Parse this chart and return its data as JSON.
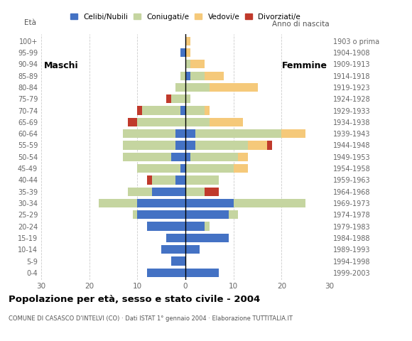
{
  "age_groups": [
    "0-4",
    "5-9",
    "10-14",
    "15-19",
    "20-24",
    "25-29",
    "30-34",
    "35-39",
    "40-44",
    "45-49",
    "50-54",
    "55-59",
    "60-64",
    "65-69",
    "70-74",
    "75-79",
    "80-84",
    "85-89",
    "90-94",
    "95-99",
    "100+"
  ],
  "birth_years": [
    "1999-2003",
    "1994-1998",
    "1989-1993",
    "1984-1988",
    "1979-1983",
    "1974-1978",
    "1969-1973",
    "1964-1968",
    "1959-1963",
    "1954-1958",
    "1949-1953",
    "1944-1948",
    "1939-1943",
    "1934-1938",
    "1929-1933",
    "1924-1928",
    "1919-1923",
    "1914-1918",
    "1909-1913",
    "1904-1908",
    "1903 o prima"
  ],
  "colors": {
    "celibi": "#4472C4",
    "coniugati": "#c5d5a0",
    "vedovi": "#f5c97a",
    "divorziati": "#c0392b"
  },
  "maschi": {
    "celibi": [
      8,
      3,
      5,
      4,
      8,
      10,
      10,
      7,
      2,
      1,
      3,
      2,
      2,
      0,
      1,
      0,
      0,
      0,
      0,
      1,
      0
    ],
    "coniugati": [
      0,
      0,
      0,
      0,
      0,
      1,
      8,
      5,
      5,
      9,
      10,
      11,
      11,
      10,
      8,
      3,
      2,
      1,
      0,
      0,
      0
    ],
    "vedovi": [
      0,
      0,
      0,
      0,
      0,
      0,
      0,
      0,
      0,
      0,
      0,
      0,
      0,
      0,
      0,
      0,
      0,
      0,
      0,
      0,
      0
    ],
    "divorziati": [
      0,
      0,
      0,
      0,
      0,
      0,
      0,
      0,
      1,
      0,
      0,
      0,
      0,
      2,
      1,
      1,
      0,
      0,
      0,
      0,
      0
    ]
  },
  "femmine": {
    "celibi": [
      7,
      0,
      3,
      9,
      4,
      9,
      10,
      0,
      0,
      0,
      1,
      2,
      2,
      0,
      0,
      0,
      0,
      1,
      0,
      0,
      0
    ],
    "coniugati": [
      0,
      0,
      0,
      0,
      1,
      2,
      15,
      4,
      7,
      10,
      10,
      11,
      18,
      5,
      4,
      1,
      5,
      3,
      1,
      0,
      0
    ],
    "vedovi": [
      0,
      0,
      0,
      0,
      0,
      0,
      0,
      0,
      0,
      3,
      2,
      4,
      5,
      7,
      1,
      0,
      10,
      4,
      3,
      1,
      1
    ],
    "divorziati": [
      0,
      0,
      0,
      0,
      0,
      0,
      0,
      3,
      0,
      0,
      0,
      1,
      0,
      0,
      0,
      0,
      0,
      0,
      0,
      0,
      0
    ]
  },
  "xlim": 30,
  "title": "Popolazione per età, sesso e stato civile - 2004",
  "subtitle": "COMUNE DI CASASCO D'INTELVI (CO) · Dati ISTAT 1° gennaio 2004 · Elaborazione TUTTITALIA.IT",
  "ylabel_left": "Età",
  "ylabel_right": "Anno di nascita",
  "label_maschi": "Maschi",
  "label_femmine": "Femmine",
  "legend_labels": [
    "Celibi/Nubili",
    "Coniugati/e",
    "Vedovi/e",
    "Divorziati/e"
  ],
  "bg_color": "#ffffff",
  "bar_height": 0.75
}
